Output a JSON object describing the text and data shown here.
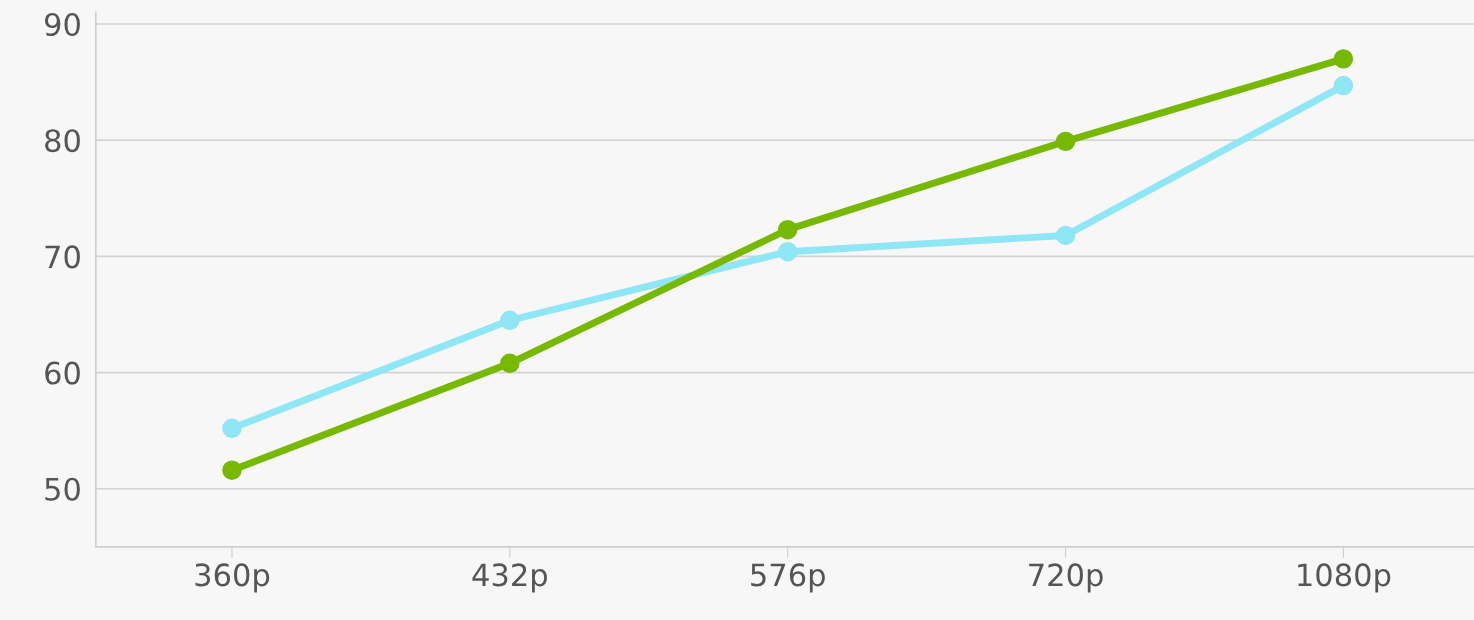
{
  "chart_data": {
    "type": "line",
    "categories": [
      "360p",
      "432p",
      "576p",
      "720p",
      "1080p"
    ],
    "series": [
      {
        "color": "#8fe6f4",
        "values": [
          55.2,
          64.5,
          70.4,
          71.8,
          84.7
        ]
      },
      {
        "color": "#76b900",
        "values": [
          51.6,
          60.8,
          72.3,
          79.9,
          87.0
        ]
      }
    ],
    "ylim": [
      45,
      91
    ],
    "yticks": [
      50,
      60,
      70,
      80,
      90
    ],
    "grid": "y",
    "marker": "circle",
    "line_style": "solid"
  }
}
